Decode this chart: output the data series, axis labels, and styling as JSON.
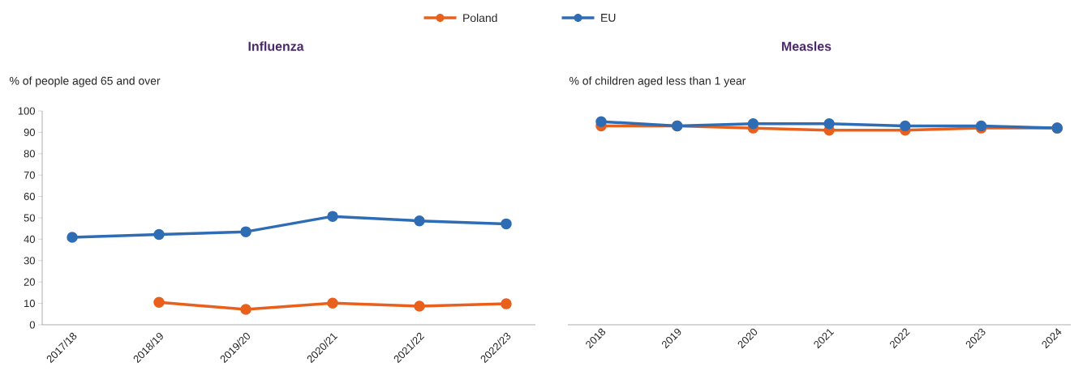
{
  "chart_data": [
    {
      "type": "line",
      "title": "Influenza",
      "ylabel": "% of people aged 65 and over",
      "categories": [
        "2017/18",
        "2018/19",
        "2019/20",
        "2020/21",
        "2021/22",
        "2022/23"
      ],
      "series": [
        {
          "name": "Poland",
          "color": "#e8601c",
          "values": [
            null,
            10.5,
            7.2,
            10.1,
            8.7,
            9.8
          ]
        },
        {
          "name": "EU",
          "color": "#2e6db4",
          "values": [
            40.9,
            42.2,
            43.5,
            50.7,
            48.6,
            47.2
          ]
        }
      ],
      "ylim": [
        0,
        100
      ],
      "yticks": [
        0,
        10,
        20,
        30,
        40,
        50,
        60,
        70,
        80,
        90,
        100
      ],
      "legend": "top",
      "marker": "circle",
      "grid": false
    },
    {
      "type": "line",
      "title": "Measles",
      "ylabel": "% of children aged less than 1 year",
      "categories": [
        "2018",
        "2019",
        "2020",
        "2021",
        "2022",
        "2023",
        "2024"
      ],
      "series": [
        {
          "color": "#e8601c",
          "values": [
            93,
            93,
            92,
            91,
            91,
            92,
            92
          ]
        },
        {
          "color": "#2e6db4",
          "values": [
            95,
            93,
            94,
            94,
            93,
            93,
            92
          ]
        }
      ],
      "ylim": [
        0,
        100
      ],
      "tick_labels": "x",
      "legend": false,
      "marker": "circle",
      "grid": false
    }
  ]
}
